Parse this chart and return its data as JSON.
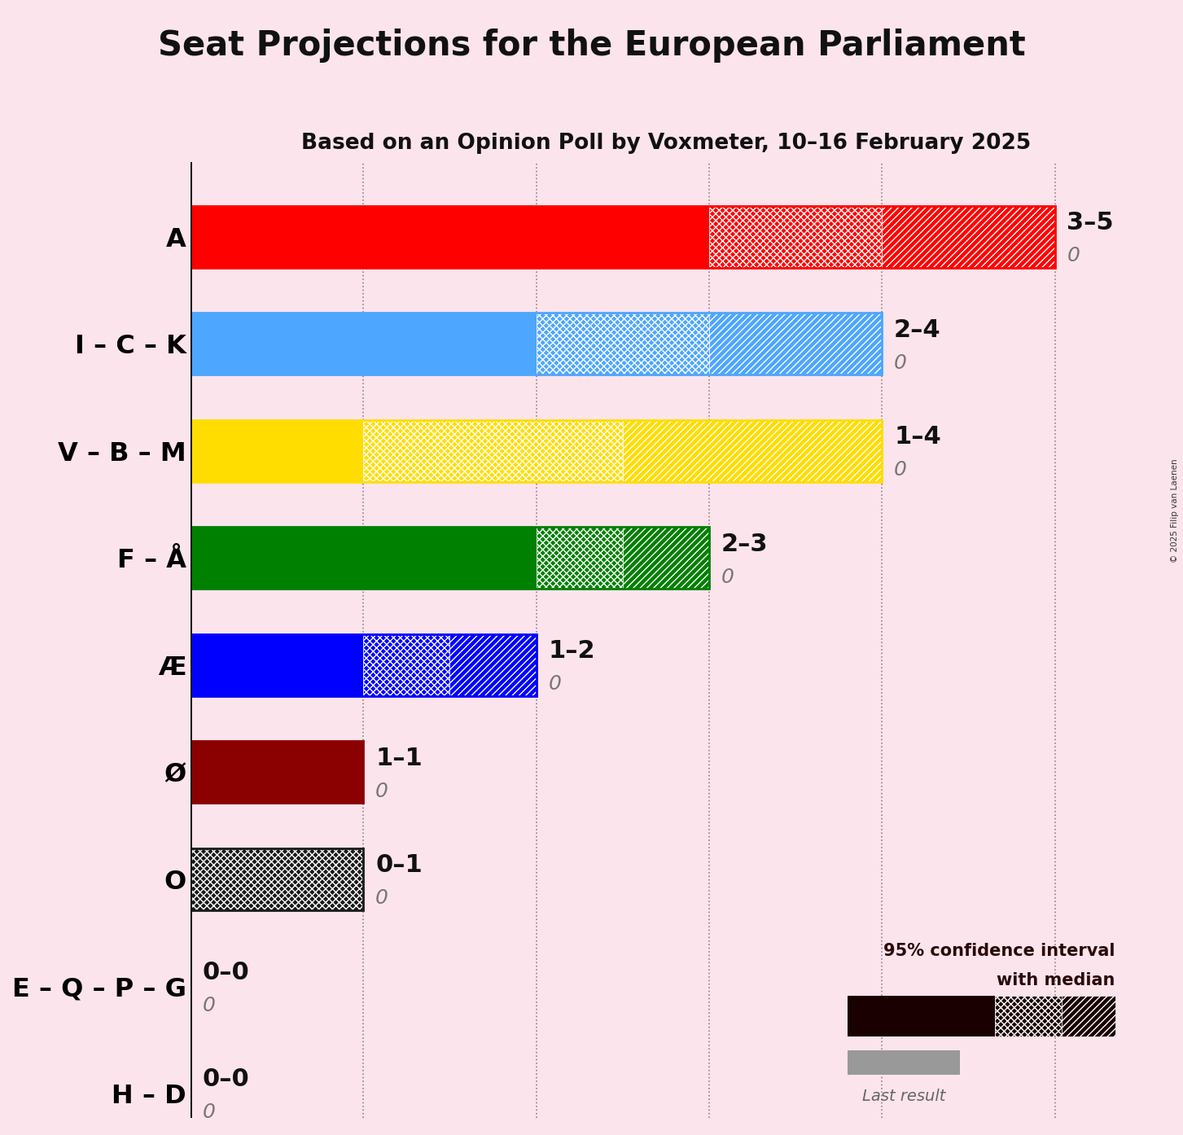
{
  "title": "Seat Projections for the European Parliament",
  "subtitle": "Based on an Opinion Poll by Voxmeter, 10–16 February 2025",
  "copyright": "© 2025 Filip van Laenen",
  "background_color": "#fce4ec",
  "parties": [
    "A",
    "I – C – K",
    "V – B – M",
    "F – Å",
    "Æ",
    "Ø",
    "O",
    "E – Q – P – G",
    "H – D"
  ],
  "colors": [
    "#ff0000",
    "#4da6ff",
    "#ffdd00",
    "#008000",
    "#0000ff",
    "#8b0000",
    "#1a1a1a",
    "#888888",
    "#888888"
  ],
  "median": [
    3,
    2,
    1,
    2,
    1,
    1,
    0,
    0,
    0
  ],
  "ci_low": [
    3,
    2,
    1,
    2,
    1,
    1,
    0,
    0,
    0
  ],
  "ci_high": [
    5,
    4,
    4,
    3,
    2,
    1,
    1,
    0,
    0
  ],
  "last_result": [
    0,
    0,
    0,
    0,
    0,
    0,
    0,
    0,
    0
  ],
  "range_labels": [
    "3–5",
    "2–4",
    "1–4",
    "2–3",
    "1–2",
    "1–1",
    "0–1",
    "0–0",
    "0–0"
  ],
  "xlim": [
    0,
    5.5
  ],
  "dotted_lines": [
    1,
    2,
    3,
    4,
    5
  ],
  "title_fontsize": 30,
  "subtitle_fontsize": 19,
  "label_fontsize": 23,
  "annotation_fontsize": 22,
  "last_result_fontsize": 18,
  "bar_height": 0.58,
  "legend_text": "95% confidence interval\nwith median",
  "legend_last": "Last result"
}
